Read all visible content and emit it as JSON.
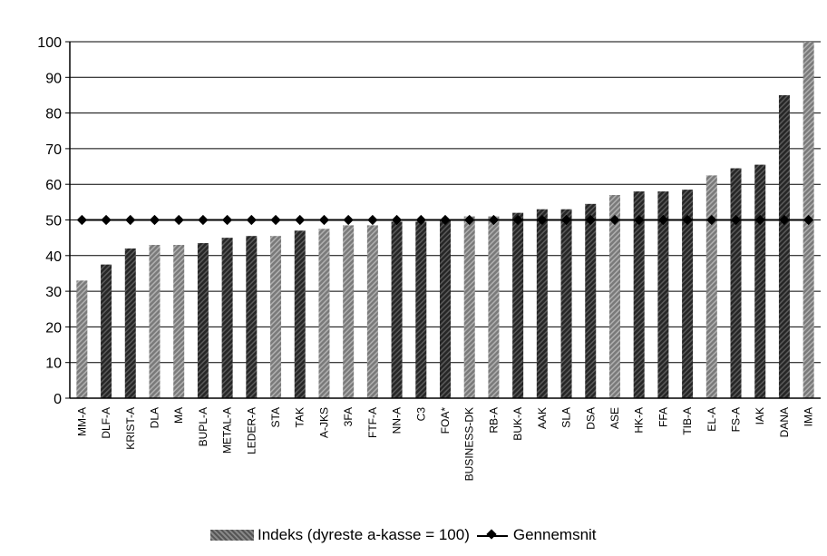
{
  "chart_data": {
    "type": "bar",
    "categories": [
      "MM-A",
      "DLF-A",
      "KRIST-A",
      "DLA",
      "MA",
      "BUPL-A",
      "METAL-A",
      "LEDER-A",
      "STA",
      "TAK",
      "A-JKS",
      "3FA",
      "FTF-A",
      "NN-A",
      "C3",
      "FOA*",
      "BUSINESS-DK",
      "RB-A",
      "BUK-A",
      "AAK",
      "SLA",
      "DSA",
      "ASE",
      "HK-A",
      "FFA",
      "TIB-A",
      "EL-A",
      "FS-A",
      "IAK",
      "DANA",
      "IMA"
    ],
    "series": [
      {
        "name": "Indeks (dyreste a-kasse = 100)",
        "type": "bar",
        "values": [
          33,
          37.5,
          42,
          43,
          43,
          43.5,
          45,
          45.5,
          45.5,
          47,
          47.5,
          48.5,
          48.5,
          49.5,
          49.5,
          50,
          51,
          51,
          52,
          53,
          53,
          54.5,
          57,
          58,
          58,
          58.5,
          62.5,
          64.5,
          65.5,
          85,
          100
        ],
        "style": [
          "light",
          "dark",
          "dark",
          "light",
          "light",
          "dark",
          "dark",
          "dark",
          "light",
          "dark",
          "light",
          "light",
          "light",
          "dark",
          "dark",
          "dark",
          "light",
          "light",
          "dark",
          "dark",
          "dark",
          "dark",
          "light",
          "dark",
          "dark",
          "dark",
          "light",
          "dark",
          "dark",
          "dark",
          "light"
        ]
      },
      {
        "name": "Gennemsnit",
        "type": "line",
        "values": [
          50,
          50,
          50,
          50,
          50,
          50,
          50,
          50,
          50,
          50,
          50,
          50,
          50,
          50,
          50,
          50,
          50,
          50,
          50,
          50,
          50,
          50,
          50,
          50,
          50,
          50,
          50,
          50,
          50,
          50,
          50
        ]
      }
    ],
    "ylim": [
      0,
      100
    ],
    "yticks": [
      "0",
      "10",
      "20",
      "30",
      "40",
      "50",
      "60",
      "70",
      "80",
      "90",
      "100"
    ],
    "grid": true,
    "legend_position": "bottom",
    "colors": {
      "bar_dark": "#2a2a2a",
      "bar_light": "#8c8c8c",
      "line": "#000000",
      "grid": "#000000"
    }
  },
  "legend": {
    "bar_label": "Indeks (dyreste a-kasse = 100)",
    "line_label": "Gennemsnit"
  }
}
